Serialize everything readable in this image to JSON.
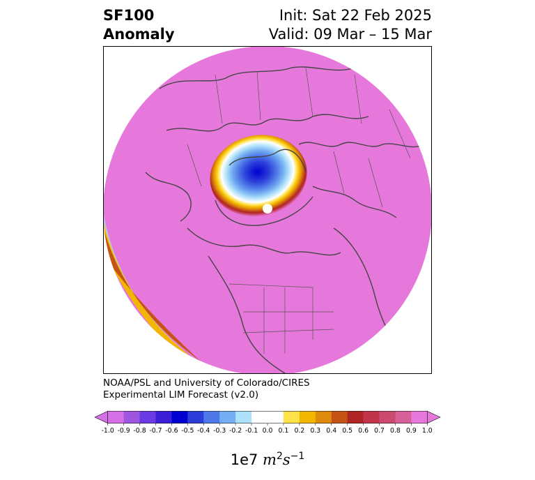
{
  "title": {
    "variable": "SF100",
    "kind": "Anomaly",
    "init": "Init: Sat 22 Feb 2025",
    "valid": "Valid: 09 Mar – 15 Mar"
  },
  "credit": {
    "line1": "NOAA/PSL and University of Colorado/CIRES",
    "line2": "Experimental LIM Forecast (v2.0)"
  },
  "map": {
    "projection": "north-polar-stereographic",
    "background_anomaly_color": "#e678db",
    "features": [
      "coastlines",
      "country-borders",
      "state-province-borders"
    ],
    "anomaly_center": "negative anomaly centered over northern Russia / Arctic Ocean",
    "secondary_feature": "positive-to-negative gradient band over the North Pacific"
  },
  "colorbar": {
    "ticks": [
      "-1.0",
      "-0.9",
      "-0.8",
      "-0.7",
      "-0.6",
      "-0.5",
      "-0.4",
      "-0.3",
      "-0.2",
      "-0.1",
      "0.0",
      "0.1",
      "0.2",
      "0.3",
      "0.4",
      "0.5",
      "0.6",
      "0.7",
      "0.8",
      "0.9",
      "1.0"
    ],
    "colors": [
      "#d670e6",
      "#9e55e0",
      "#6a3be0",
      "#3a1ed8",
      "#0000d0",
      "#2b3ed8",
      "#4e78e8",
      "#74aef2",
      "#ade0fa",
      "#ffffff",
      "#ffffff",
      "#ffe14a",
      "#f2b600",
      "#de8a0c",
      "#c65316",
      "#b02424",
      "#c0354a",
      "#cc4a70",
      "#d86098",
      "#e678db"
    ],
    "extend_low_color": "#d670e6",
    "extend_high_color": "#e678db",
    "units_prefix": "1e7 ",
    "units_m": "m",
    "units_m_exp": "2",
    "units_s": "s",
    "units_s_exp": "−1"
  }
}
